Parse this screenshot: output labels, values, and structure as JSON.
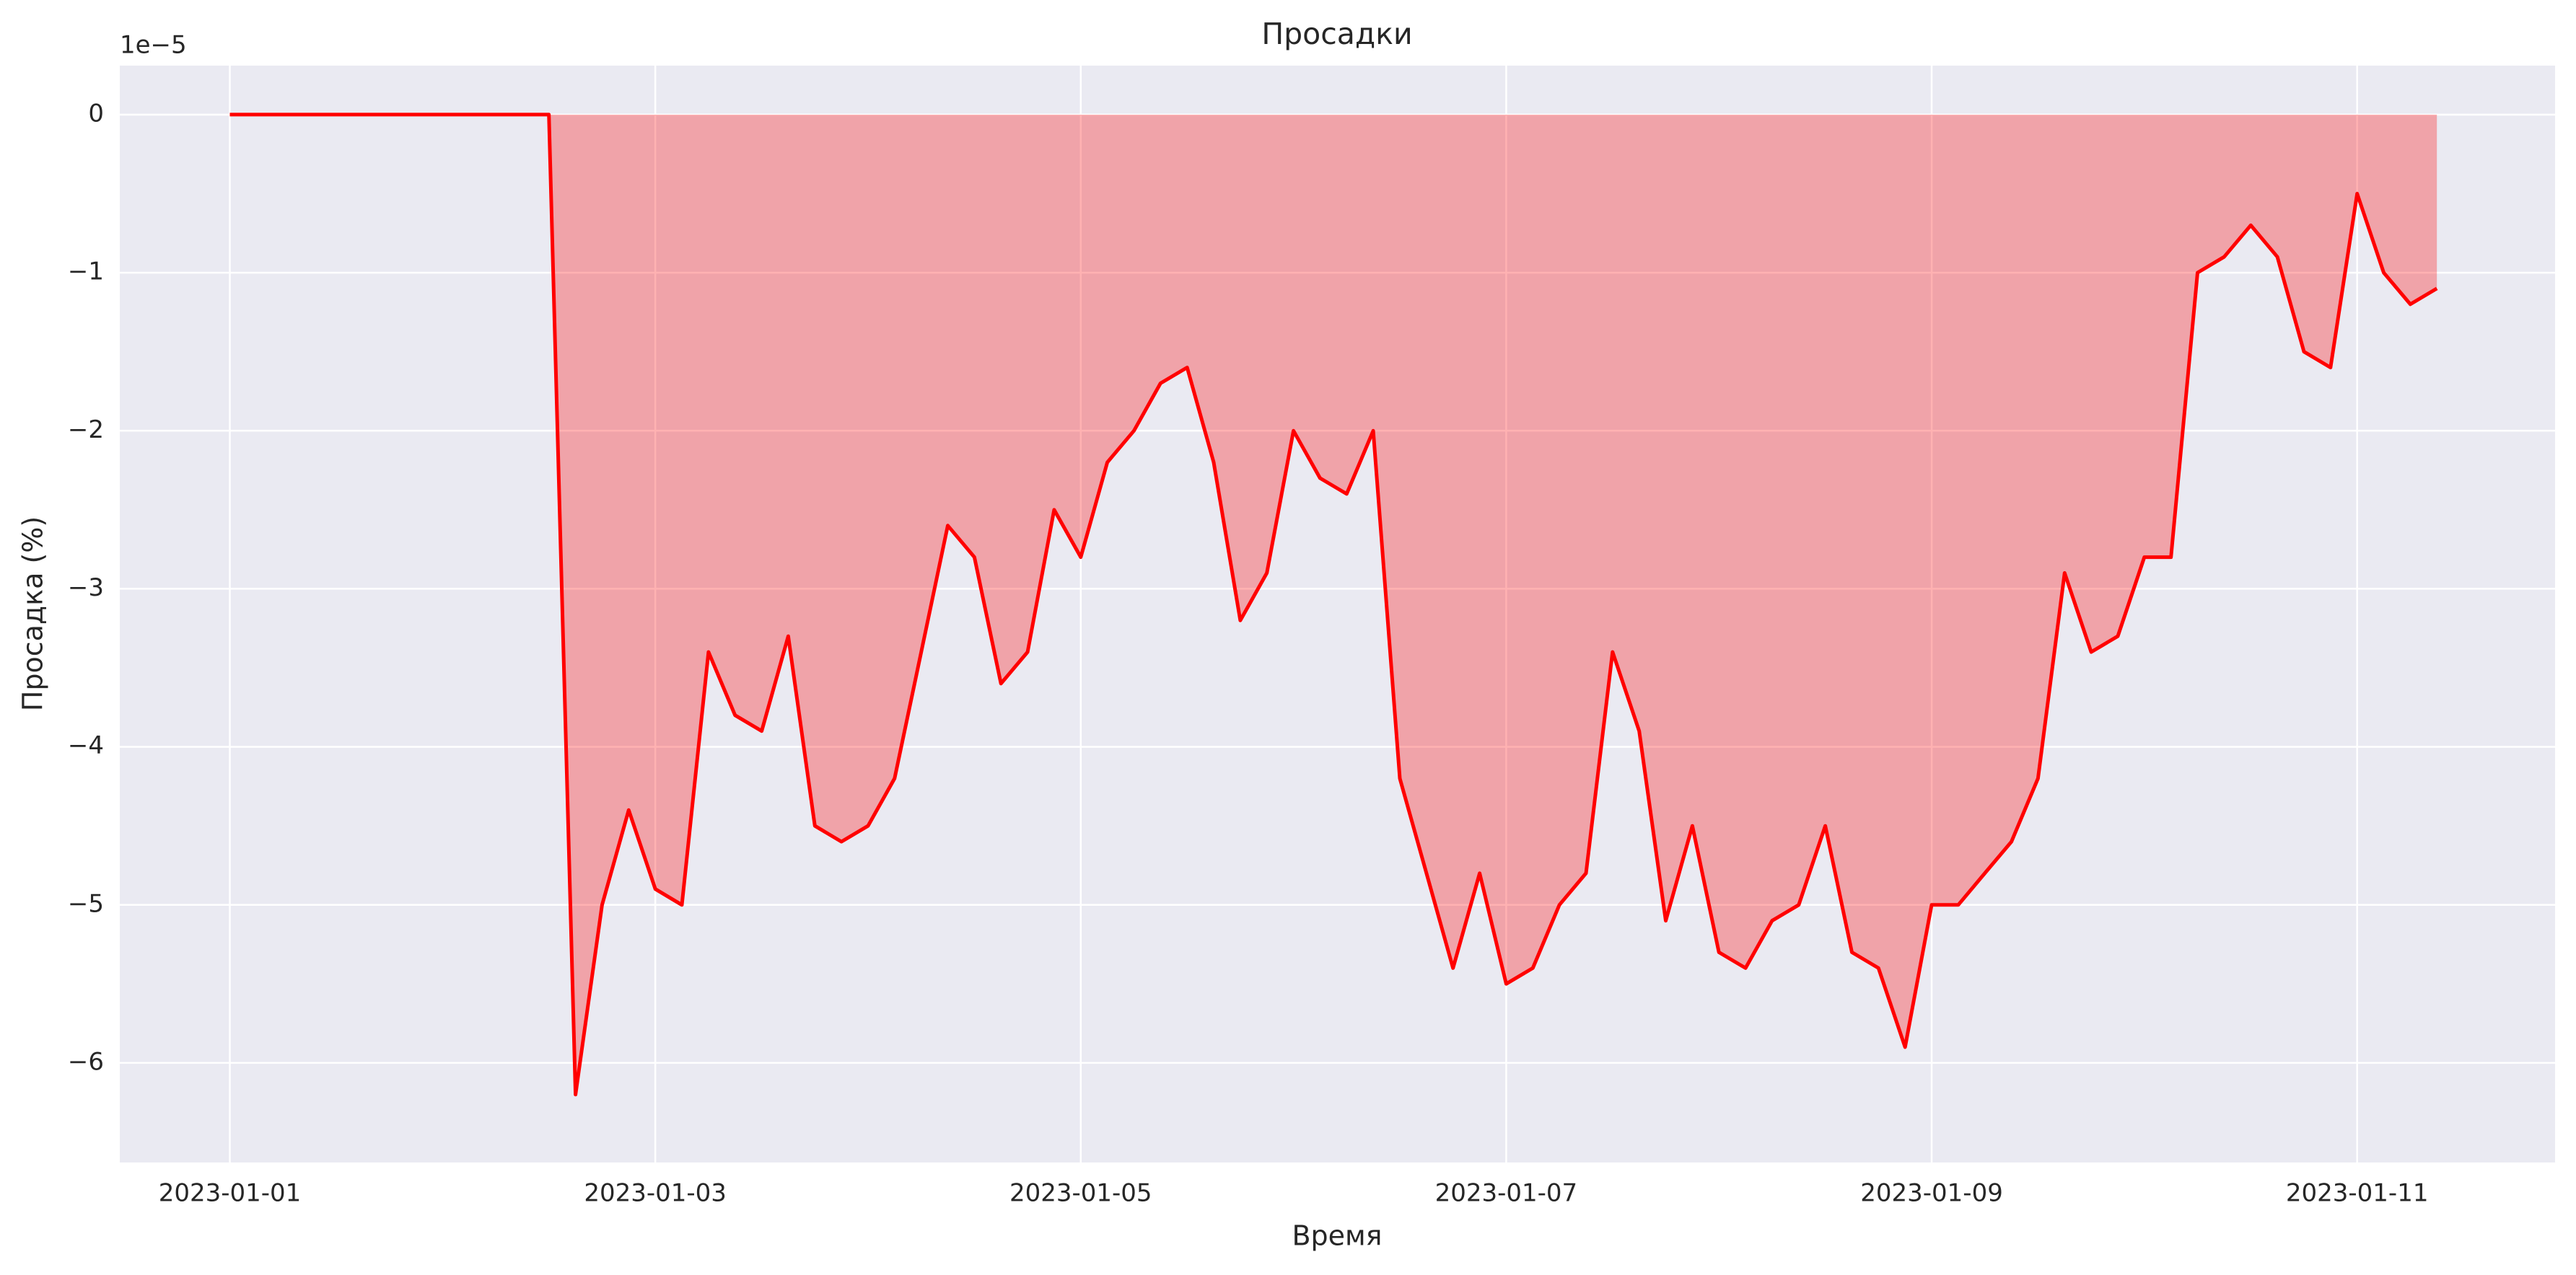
{
  "chart_data": {
    "type": "area-line",
    "title": "Просадки",
    "xlabel": "Время",
    "ylabel": "Просадка (%)",
    "y_offset_label": "1e−5",
    "x": [
      "2023-01-01T00:00",
      "2023-01-02T12:00",
      "2023-01-02T15:00",
      "2023-01-02T18:00",
      "2023-01-02T21:00",
      "2023-01-03T00:00",
      "2023-01-03T03:00",
      "2023-01-03T06:00",
      "2023-01-03T09:00",
      "2023-01-03T12:00",
      "2023-01-03T15:00",
      "2023-01-03T18:00",
      "2023-01-03T21:00",
      "2023-01-04T00:00",
      "2023-01-04T03:00",
      "2023-01-04T06:00",
      "2023-01-04T09:00",
      "2023-01-04T12:00",
      "2023-01-04T15:00",
      "2023-01-04T18:00",
      "2023-01-04T21:00",
      "2023-01-05T00:00",
      "2023-01-05T03:00",
      "2023-01-05T06:00",
      "2023-01-05T09:00",
      "2023-01-05T12:00",
      "2023-01-05T15:00",
      "2023-01-05T18:00",
      "2023-01-05T21:00",
      "2023-01-06T00:00",
      "2023-01-06T03:00",
      "2023-01-06T06:00",
      "2023-01-06T09:00",
      "2023-01-06T12:00",
      "2023-01-06T15:00",
      "2023-01-06T18:00",
      "2023-01-06T21:00",
      "2023-01-07T00:00",
      "2023-01-07T03:00",
      "2023-01-07T06:00",
      "2023-01-07T09:00",
      "2023-01-07T12:00",
      "2023-01-07T15:00",
      "2023-01-07T18:00",
      "2023-01-07T21:00",
      "2023-01-08T00:00",
      "2023-01-08T03:00",
      "2023-01-08T06:00",
      "2023-01-08T09:00",
      "2023-01-08T12:00",
      "2023-01-08T15:00",
      "2023-01-08T18:00",
      "2023-01-08T21:00",
      "2023-01-09T00:00",
      "2023-01-09T03:00",
      "2023-01-09T06:00",
      "2023-01-09T09:00",
      "2023-01-09T12:00",
      "2023-01-09T15:00",
      "2023-01-09T18:00",
      "2023-01-09T21:00",
      "2023-01-10T00:00",
      "2023-01-10T03:00",
      "2023-01-10T06:00",
      "2023-01-10T09:00",
      "2023-01-10T12:00",
      "2023-01-10T15:00",
      "2023-01-10T18:00",
      "2023-01-10T21:00",
      "2023-01-11T00:00",
      "2023-01-11T03:00",
      "2023-01-11T06:00",
      "2023-01-11T09:00"
    ],
    "series": [
      {
        "color": "#ff0000",
        "values": [
          0,
          0,
          -6.2,
          -5.0,
          -4.4,
          -4.9,
          -5.0,
          -3.4,
          -3.8,
          -3.9,
          -3.3,
          -4.5,
          -4.6,
          -4.5,
          -4.2,
          -3.4,
          -2.6,
          -2.8,
          -3.6,
          -3.4,
          -2.5,
          -2.8,
          -2.2,
          -2.0,
          -1.7,
          -1.6,
          -2.2,
          -3.2,
          -2.9,
          -2.0,
          -2.3,
          -2.4,
          -2.0,
          -4.2,
          -4.8,
          -5.4,
          -4.8,
          -5.5,
          -5.4,
          -5.0,
          -4.8,
          -3.4,
          -3.9,
          -5.1,
          -4.5,
          -5.3,
          -5.4,
          -5.1,
          -5.0,
          -4.5,
          -5.3,
          -5.4,
          -5.9,
          -5.0,
          -5.0,
          -4.8,
          -4.6,
          -4.2,
          -2.9,
          -3.4,
          -3.3,
          -2.8,
          -2.8,
          -1.0,
          -0.9,
          -0.7,
          -0.9,
          -1.5,
          -1.6,
          -0.5,
          -1.0,
          -1.2,
          -1.1
        ]
      }
    ],
    "fill_alpha": 0.3,
    "xlim": [
      "2022-12-31T11:35",
      "2023-01-11T22:20"
    ],
    "xticks": [
      "2023-01-01",
      "2023-01-03",
      "2023-01-05",
      "2023-01-07",
      "2023-01-09",
      "2023-01-11"
    ],
    "ylim": [
      -6.63,
      0.31
    ],
    "yticks": [
      {
        "value": -6,
        "label": "−6"
      },
      {
        "value": -5,
        "label": "−5"
      },
      {
        "value": -4,
        "label": "−4"
      },
      {
        "value": -3,
        "label": "−3"
      },
      {
        "value": -2,
        "label": "−2"
      },
      {
        "value": -1,
        "label": "−1"
      },
      0
    ],
    "grid": true
  }
}
